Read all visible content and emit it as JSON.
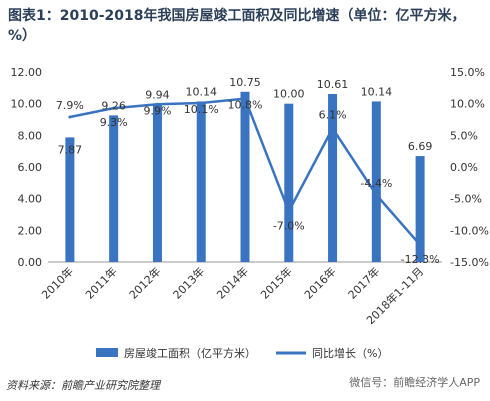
{
  "title": "图表1：2010-2018年我国房屋竣工面积及同比增速（单位：亿平方米，%）",
  "source": "资料来源：前瞻产业研究院整理",
  "watermark": "微信号：前瞻经济学人APP",
  "chart_data": {
    "type": "bar",
    "categories": [
      "2010年",
      "2011年",
      "2012年",
      "2013年",
      "2014年",
      "2015年",
      "2016年",
      "2017年",
      "2018年1-11月"
    ],
    "series": [
      {
        "name": "房屋竣工面积（亿平方米）",
        "type": "bar",
        "axis": "left",
        "values": [
          7.87,
          9.26,
          9.94,
          10.14,
          10.75,
          10.0,
          10.61,
          10.14,
          6.69
        ],
        "labels": [
          "7.87",
          "9.26",
          "9.94",
          "10.14",
          "10.75",
          "10.00",
          "10.61",
          "10.14",
          "6.69"
        ],
        "color": "#3a73c0"
      },
      {
        "name": "同比增长（%）",
        "type": "line",
        "axis": "right",
        "values": [
          7.9,
          9.3,
          9.9,
          10.1,
          10.8,
          -7.0,
          6.1,
          -4.4,
          -12.3
        ],
        "labels": [
          "7.9%",
          "9.3%",
          "9.9%",
          "10.1%",
          "10.8%",
          "-7.0%",
          "6.1%",
          "-4.4%",
          "-12.3%"
        ],
        "color": "#3a73c0"
      }
    ],
    "left_axis": {
      "min": 0,
      "max": 12,
      "ticks": [
        "0.00",
        "2.00",
        "4.00",
        "6.00",
        "8.00",
        "10.00",
        "12.00"
      ]
    },
    "right_axis": {
      "min": -15,
      "max": 15,
      "ticks": [
        "-15.0%",
        "-10.0%",
        "-5.0%",
        "0.0%",
        "5.0%",
        "10.0%",
        "15.0%"
      ]
    },
    "legend_position": "bottom",
    "grid": false
  }
}
